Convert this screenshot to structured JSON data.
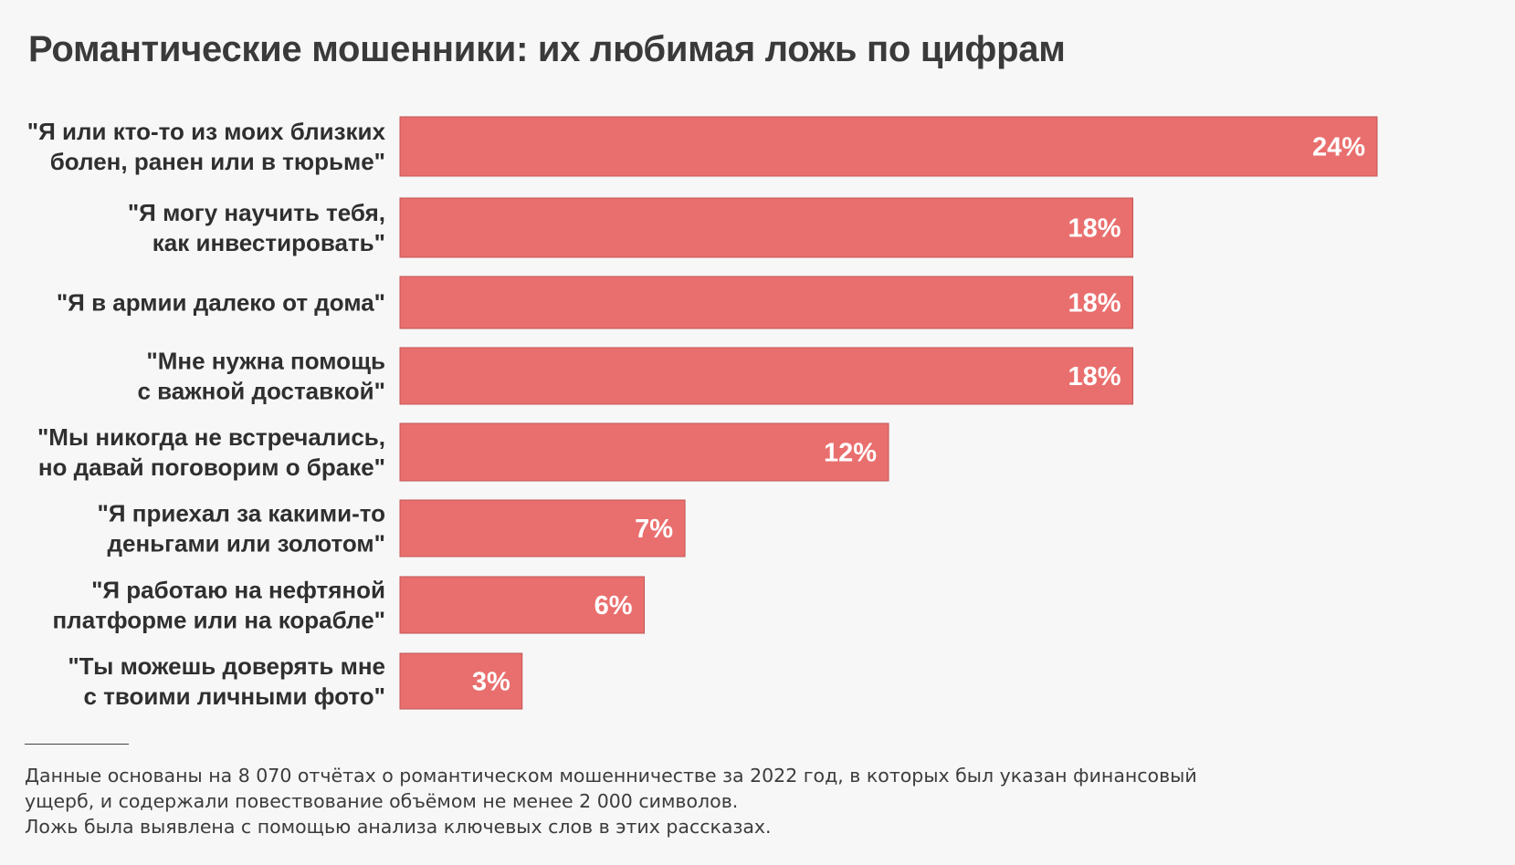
{
  "colors": {
    "background": "#f7f7f7",
    "bar": "#e96f6e",
    "bar_border": "#c45555",
    "title": "#3a3a3a",
    "value_label": "#ffffff"
  },
  "footnote": {
    "lines": [
      "Данные основаны на 8 070 отчётах о романтическом мошенничестве за 2022 год, в которых был указан финансовый",
      "ущерб, и содержали повествование объёмом не менее 2 000 символов.",
      "Ложь была выявлена с помощью анализа ключевых слов в этих рассказах."
    ]
  },
  "chart_data": {
    "type": "bar",
    "orientation": "horizontal",
    "title": "Романтические мошенники: их любимая ложь по цифрам",
    "value_suffix": "%",
    "xlim": [
      0,
      24
    ],
    "grid": false,
    "legend": "none",
    "categories": [
      [
        "\"Я или кто-то из моих близких",
        "болен, ранен или в тюрьме\""
      ],
      [
        "\"Я могу научить тебя,",
        "как инвестировать\""
      ],
      [
        "\"Я в армии далеко от дома\""
      ],
      [
        "\"Мне нужна помощь",
        "с важной доставкой\""
      ],
      [
        "\"Мы никогда не встречались,",
        "но давай поговорим о браке\""
      ],
      [
        "\"Я приехал за какими-то",
        "деньгами или золотом\""
      ],
      [
        "\"Я работаю на нефтяной",
        "платформе или на корабле\""
      ],
      [
        "\"Ты можешь доверять мне",
        "с твоими личными фото\""
      ]
    ],
    "values": [
      24,
      18,
      18,
      18,
      12,
      7,
      6,
      3
    ],
    "value_labels": [
      "24%",
      "18%",
      "18%",
      "18%",
      "12%",
      "7%",
      "6%",
      "3%"
    ]
  }
}
